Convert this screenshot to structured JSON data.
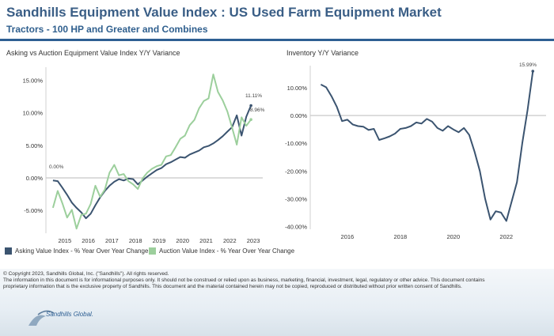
{
  "header": {
    "title": "Sandhills Equipment Value Index : US Used Farm Equipment Market",
    "subtitle": "Tractors - 100 HP and Greater and Combines"
  },
  "panels": {
    "left_title": "Asking vs Auction Equipment Value Index Y/Y Variance",
    "right_title": "Inventory Y/Y Variance"
  },
  "legend": {
    "asking": "Asking Value Index - % Year Over Year Change",
    "auction": "Auction Value Index - % Year Over Year Change"
  },
  "colors": {
    "asking": "#3b5470",
    "auction": "#9ccf9c",
    "inventory": "#3b5470",
    "zero_line": "#c8c8c8"
  },
  "footer": {
    "copyright": "© Copyright 2023, Sandhills Global, Inc. (\"Sandhills\"). All rights reserved.",
    "disclaimer": "The information in this document is for informational purposes only. It should not be construed or relied upon as business, marketing, financial, investment, legal, regulatory or other advice. This document contains proprietary information that is the exclusive property of Sandhills. This document and the material contained herein may not be copied, reproduced or distributed without prior written consent of Sandhills.",
    "logo_text": "Sandhills Global."
  },
  "chart_data": [
    {
      "type": "line",
      "title": "Asking vs Auction Equipment Value Index Y/Y Variance",
      "x_ticks": [
        "2015",
        "2016",
        "2017",
        "2018",
        "2019",
        "2020",
        "2021",
        "2022",
        "2023"
      ],
      "y_ticks": [
        "-5.00%",
        "0.00%",
        "5.00%",
        "10.00%",
        "15.00%"
      ],
      "ylim": [
        -8.5,
        17
      ],
      "xlim": [
        2014.2,
        2023.4
      ],
      "annotations": [
        "0.00%",
        "11.11%",
        "8.96%"
      ],
      "series": [
        {
          "name": "Asking Value Index - % Year Over Year Change",
          "x": [
            2014.5,
            2014.7,
            2014.9,
            2015.1,
            2015.3,
            2015.5,
            2015.7,
            2015.9,
            2016.1,
            2016.3,
            2016.5,
            2016.7,
            2016.9,
            2017.1,
            2017.3,
            2017.5,
            2017.7,
            2017.9,
            2018.1,
            2018.3,
            2018.5,
            2018.7,
            2018.9,
            2019.1,
            2019.3,
            2019.5,
            2019.7,
            2019.9,
            2020.1,
            2020.3,
            2020.5,
            2020.7,
            2020.9,
            2021.1,
            2021.3,
            2021.5,
            2021.7,
            2021.9,
            2022.1,
            2022.3,
            2022.5,
            2022.7,
            2022.9
          ],
          "values": [
            -0.4,
            -0.5,
            -1.5,
            -2.6,
            -3.8,
            -4.6,
            -5.3,
            -6.2,
            -5.5,
            -4.2,
            -3.0,
            -2.0,
            -1.2,
            -0.6,
            -0.2,
            -0.4,
            -0.1,
            -0.2,
            -1.0,
            -0.4,
            0.2,
            0.7,
            1.2,
            1.5,
            2.1,
            2.4,
            2.8,
            3.2,
            3.1,
            3.6,
            3.9,
            4.2,
            4.7,
            4.9,
            5.3,
            5.8,
            6.4,
            7.1,
            7.8,
            9.6,
            6.5,
            9.4,
            11.11
          ]
        },
        {
          "name": "Auction Value Index - % Year Over Year Change",
          "x": [
            2014.5,
            2014.7,
            2014.9,
            2015.1,
            2015.3,
            2015.5,
            2015.7,
            2015.9,
            2016.1,
            2016.3,
            2016.5,
            2016.7,
            2016.9,
            2017.1,
            2017.3,
            2017.5,
            2017.7,
            2017.9,
            2018.1,
            2018.3,
            2018.5,
            2018.7,
            2018.9,
            2019.1,
            2019.3,
            2019.5,
            2019.7,
            2019.9,
            2020.1,
            2020.3,
            2020.5,
            2020.7,
            2020.9,
            2021.1,
            2021.3,
            2021.5,
            2021.7,
            2021.9,
            2022.1,
            2022.3,
            2022.5,
            2022.7,
            2022.9
          ],
          "values": [
            -4.6,
            -2.0,
            -3.9,
            -6.1,
            -4.9,
            -7.8,
            -5.7,
            -5.5,
            -4.0,
            -1.2,
            -2.9,
            -1.8,
            0.8,
            2.0,
            0.4,
            0.6,
            -0.5,
            -1.0,
            -1.7,
            -0.1,
            0.8,
            1.4,
            1.8,
            2.0,
            3.3,
            3.5,
            4.7,
            6.0,
            6.5,
            8.1,
            8.9,
            10.7,
            11.8,
            12.2,
            15.9,
            13.2,
            11.9,
            10.2,
            7.7,
            5.1,
            9.3,
            8.0,
            8.96
          ]
        }
      ]
    },
    {
      "type": "line",
      "title": "Inventory Y/Y Variance",
      "x_ticks": [
        "2016",
        "2018",
        "2020",
        "2022"
      ],
      "y_ticks": [
        "-40.00%",
        "-30.00%",
        "-20.00%",
        "-10.00%",
        "0.00%",
        "10.00%"
      ],
      "ylim": [
        -41,
        18
      ],
      "xlim": [
        2014.6,
        2023.5
      ],
      "annotations": [
        "15.99%"
      ],
      "series": [
        {
          "name": "Inventory Y/Y Variance",
          "x": [
            2015.0,
            2015.2,
            2015.4,
            2015.6,
            2015.8,
            2016.0,
            2016.2,
            2016.4,
            2016.6,
            2016.8,
            2017.0,
            2017.2,
            2017.4,
            2017.6,
            2017.8,
            2018.0,
            2018.2,
            2018.4,
            2018.6,
            2018.8,
            2019.0,
            2019.2,
            2019.4,
            2019.6,
            2019.8,
            2020.0,
            2020.2,
            2020.4,
            2020.6,
            2020.8,
            2021.0,
            2021.2,
            2021.4,
            2021.6,
            2021.8,
            2022.0,
            2022.2,
            2022.4,
            2022.6,
            2022.8,
            2023.0
          ],
          "values": [
            11.2,
            10.2,
            7.0,
            3.2,
            -2.0,
            -1.5,
            -3.2,
            -3.8,
            -4.0,
            -5.2,
            -4.8,
            -8.8,
            -8.2,
            -7.5,
            -6.5,
            -4.8,
            -4.5,
            -3.8,
            -2.5,
            -2.9,
            -1.2,
            -2.2,
            -4.5,
            -5.5,
            -3.8,
            -5.0,
            -6.0,
            -4.5,
            -7.0,
            -13.0,
            -20.0,
            -30.0,
            -37.5,
            -34.5,
            -35.0,
            -38.0,
            -31.0,
            -24.0,
            -10.0,
            2.0,
            15.99
          ]
        }
      ]
    }
  ]
}
